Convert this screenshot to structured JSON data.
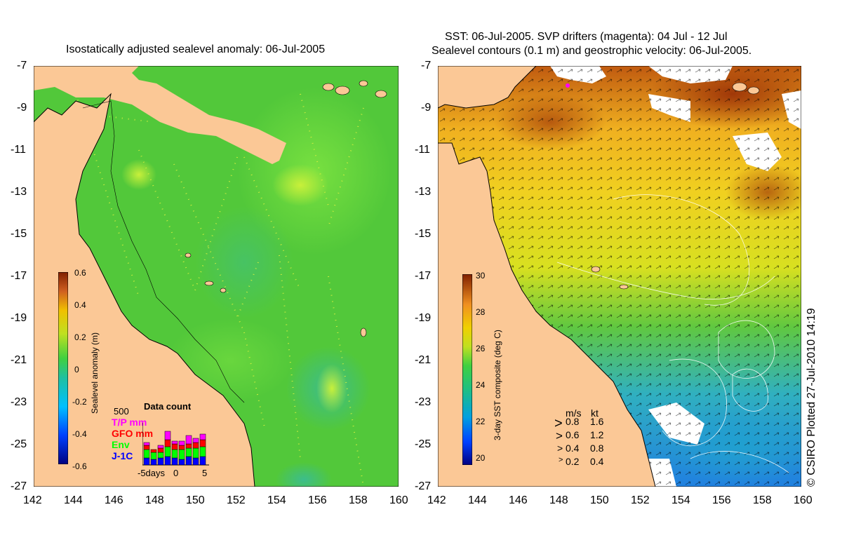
{
  "left_panel": {
    "title": "Isostatically adjusted sealevel anomaly: 06-Jul-2005",
    "y_ticks": [
      "-7",
      "-9",
      "-11",
      "-13",
      "-15",
      "-17",
      "-19",
      "-21",
      "-23",
      "-25",
      "-27"
    ],
    "x_ticks": [
      "142",
      "144",
      "146",
      "148",
      "150",
      "152",
      "154",
      "156",
      "158",
      "160"
    ],
    "colorbar": {
      "label": "Sealevel anomaly (m)",
      "ticks": [
        "0.6",
        "0.4",
        "0.2",
        "0",
        "-0.2",
        "-0.4",
        "-0.6"
      ],
      "range": [
        -0.6,
        0.6
      ]
    },
    "data_count": {
      "title": "Data count",
      "max_label": "500",
      "legend": [
        {
          "label": "T/P mm",
          "color": "#ff00ff"
        },
        {
          "label": "GFO mm",
          "color": "#ff0000"
        },
        {
          "label": "Env",
          "color": "#00ff00"
        },
        {
          "label": "J-1C",
          "color": "#0000ff"
        }
      ],
      "x_ticks": [
        "-5days",
        "0",
        "5"
      ]
    }
  },
  "right_panel": {
    "title_line1": "SST: 06-Jul-2005. SVP drifters (magenta): 04 Jul - 12 Jul",
    "title_line2": "Sealevel contours (0.1 m) and geostrophic velocity: 06-Jul-2005.",
    "y_ticks": [
      "-7",
      "-9",
      "-11",
      "-13",
      "-15",
      "-17",
      "-19",
      "-21",
      "-23",
      "-25",
      "-27"
    ],
    "x_ticks": [
      "142",
      "144",
      "146",
      "148",
      "150",
      "152",
      "154",
      "156",
      "158",
      "160"
    ],
    "colorbar": {
      "label": "3-day SST composite (deg C)",
      "ticks": [
        "30",
        "28",
        "26",
        "24",
        "22",
        "20"
      ],
      "range": [
        19.5,
        30
      ]
    },
    "velocity_key": {
      "header_ms": "m/s",
      "header_kt": "kt",
      "rows": [
        {
          "ms": "0.8",
          "kt": "1.6"
        },
        {
          "ms": "0.6",
          "kt": "1.2"
        },
        {
          "ms": "0.4",
          "kt": "0.8"
        },
        {
          "ms": "0.2",
          "kt": "0.4"
        }
      ]
    }
  },
  "copyright": "© CSIRO Plotted 27-Jul-2010 14:19",
  "colors": {
    "land": "#fbc896",
    "sea_green": "#4ec83a"
  }
}
